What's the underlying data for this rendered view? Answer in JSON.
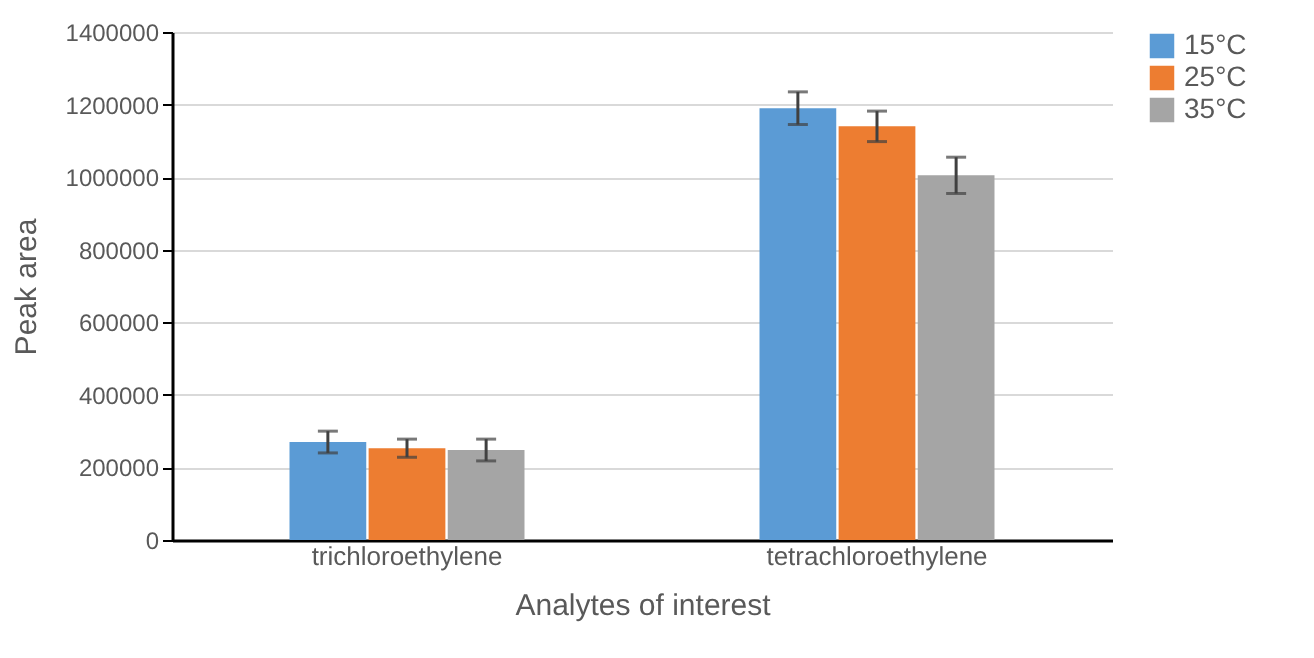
{
  "chart_data": {
    "type": "bar",
    "xlabel": "Analytes of interest",
    "ylabel": "Peak area",
    "categories": [
      "trichloroethylene",
      "tetrachloroethylene"
    ],
    "series": [
      {
        "name": "15°C",
        "color": "#5b9bd5",
        "values": [
          270000,
          1190000
        ],
        "errors": [
          30000,
          45000
        ]
      },
      {
        "name": "25°C",
        "color": "#ed7d31",
        "values": [
          253000,
          1140000
        ],
        "errors": [
          25000,
          42000
        ]
      },
      {
        "name": "35°C",
        "color": "#a5a5a5",
        "values": [
          248000,
          1005000
        ],
        "errors": [
          30000,
          50000
        ]
      }
    ],
    "ylim": [
      0,
      1400000
    ],
    "yticks": [
      0,
      200000,
      400000,
      600000,
      800000,
      1000000,
      1200000,
      1400000
    ],
    "grid": "y",
    "legend": "top right"
  }
}
